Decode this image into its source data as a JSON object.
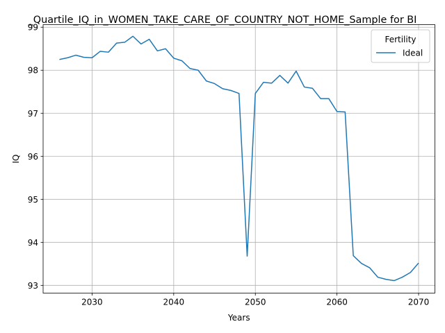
{
  "chart_data": {
    "type": "line",
    "title": "_Quartile_IQ_in_WOMEN_TAKE_CARE_OF_COUNTRY_NOT_HOME_Sample for BI",
    "xlabel": "Years",
    "ylabel": "IQ",
    "xlim": [
      2024,
      2072
    ],
    "ylim": [
      92.82,
      99.06
    ],
    "xticks": [
      2030,
      2040,
      2050,
      2060,
      2070
    ],
    "yticks": [
      93,
      94,
      95,
      96,
      97,
      98,
      99
    ],
    "grid": true,
    "legend": {
      "title": "Fertility",
      "position": "top-right"
    },
    "series": [
      {
        "name": "Ideal",
        "color": "#1f77b4",
        "x": [
          2026,
          2027,
          2028,
          2029,
          2030,
          2031,
          2032,
          2033,
          2034,
          2035,
          2036,
          2037,
          2038,
          2039,
          2040,
          2041,
          2042,
          2043,
          2044,
          2045,
          2046,
          2047,
          2048,
          2049,
          2050,
          2051,
          2052,
          2053,
          2054,
          2055,
          2056,
          2057,
          2058,
          2059,
          2060,
          2061,
          2062,
          2063,
          2064,
          2065,
          2066,
          2067,
          2068,
          2069,
          2070
        ],
        "y": [
          98.25,
          98.29,
          98.35,
          98.3,
          98.29,
          98.44,
          98.42,
          98.63,
          98.65,
          98.79,
          98.61,
          98.72,
          98.45,
          98.5,
          98.28,
          98.22,
          98.04,
          98.0,
          97.75,
          97.69,
          97.57,
          97.53,
          97.46,
          93.68,
          97.46,
          97.72,
          97.7,
          97.88,
          97.7,
          97.98,
          97.61,
          97.58,
          97.34,
          97.34,
          97.04,
          97.03,
          93.69,
          93.51,
          93.41,
          93.19,
          93.14,
          93.11,
          93.19,
          93.3,
          93.52
        ]
      }
    ]
  }
}
